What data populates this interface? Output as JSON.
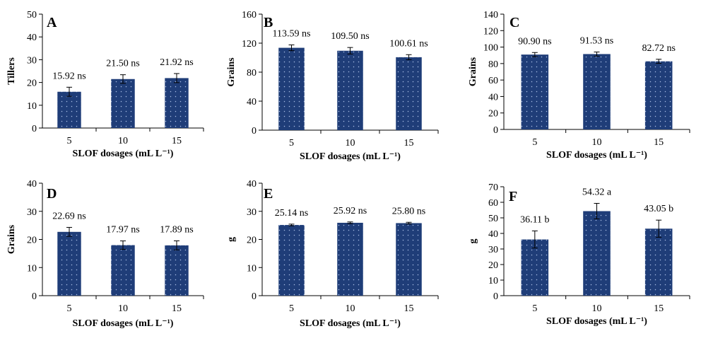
{
  "figure": {
    "bar_color": "#1f3d78",
    "dot_color": "#a9bde3"
  },
  "chart_data": [
    {
      "panel": "A",
      "type": "bar",
      "categories": [
        "5",
        "10",
        "15"
      ],
      "values": [
        15.92,
        21.5,
        21.92
      ],
      "errors": [
        2.0,
        1.9,
        2.0
      ],
      "value_labels": [
        "15.92 ns",
        "21.50 ns",
        "21.92 ns"
      ],
      "xlabel": "SLOF dosages (mL L⁻¹)",
      "ylabel": "Tillers",
      "ylim": [
        0,
        50
      ],
      "yticks": [
        0,
        10,
        20,
        30,
        40,
        50
      ],
      "grid": false
    },
    {
      "panel": "B",
      "type": "bar",
      "categories": [
        "5",
        "10",
        "15"
      ],
      "values": [
        113.59,
        109.5,
        100.61
      ],
      "errors": [
        4.0,
        4.5,
        3.5
      ],
      "value_labels": [
        "113.59 ns",
        "109.50 ns",
        "100.61 ns"
      ],
      "xlabel": "SLOF dosages (mL L⁻¹)",
      "ylabel": "Grains",
      "ylim": [
        0,
        160
      ],
      "yticks": [
        0,
        40,
        80,
        120,
        160
      ],
      "grid": false
    },
    {
      "panel": "C",
      "type": "bar",
      "categories": [
        "5",
        "10",
        "15"
      ],
      "values": [
        90.9,
        91.53,
        82.72
      ],
      "errors": [
        2.5,
        2.5,
        2.5
      ],
      "value_labels": [
        "90.90 ns",
        "91.53 ns",
        "82.72 ns"
      ],
      "xlabel": "SLOF dosages (mL L⁻¹)",
      "ylabel": "Grains",
      "ylim": [
        0,
        140
      ],
      "yticks": [
        0,
        20,
        40,
        60,
        80,
        100,
        120,
        140
      ],
      "grid": false
    },
    {
      "panel": "D",
      "type": "bar",
      "categories": [
        "5",
        "10",
        "15"
      ],
      "values": [
        22.69,
        17.97,
        17.89
      ],
      "errors": [
        1.6,
        1.5,
        1.6
      ],
      "value_labels": [
        "22.69 ns",
        "17.97 ns",
        "17.89 ns"
      ],
      "xlabel": "SLOF dosages (mL L⁻¹)",
      "ylabel": "Grains",
      "ylim": [
        0,
        40
      ],
      "yticks": [
        0,
        10,
        20,
        30,
        40
      ],
      "grid": false
    },
    {
      "panel": "E",
      "type": "bar",
      "categories": [
        "5",
        "10",
        "15"
      ],
      "values": [
        25.14,
        25.92,
        25.8
      ],
      "errors": [
        0.3,
        0.3,
        0.3
      ],
      "value_labels": [
        "25.14 ns",
        "25.92 ns",
        "25.80 ns"
      ],
      "xlabel": "SLOF dosages (mL L⁻¹)",
      "ylabel": "g",
      "ylim": [
        0,
        40
      ],
      "yticks": [
        0,
        10,
        20,
        30,
        40
      ],
      "grid": false
    },
    {
      "panel": "F",
      "type": "bar",
      "categories": [
        "5",
        "10",
        "15"
      ],
      "values": [
        36.11,
        54.32,
        43.05
      ],
      "errors": [
        5.5,
        5.0,
        5.5
      ],
      "value_labels": [
        "36.11 b",
        "54.32 a",
        "43.05 b"
      ],
      "xlabel": "SLOF dosages (mL L⁻¹)",
      "ylabel": "g",
      "ylim": [
        0,
        70
      ],
      "yticks": [
        0,
        10,
        20,
        30,
        40,
        50,
        60,
        70
      ],
      "grid": false
    }
  ]
}
